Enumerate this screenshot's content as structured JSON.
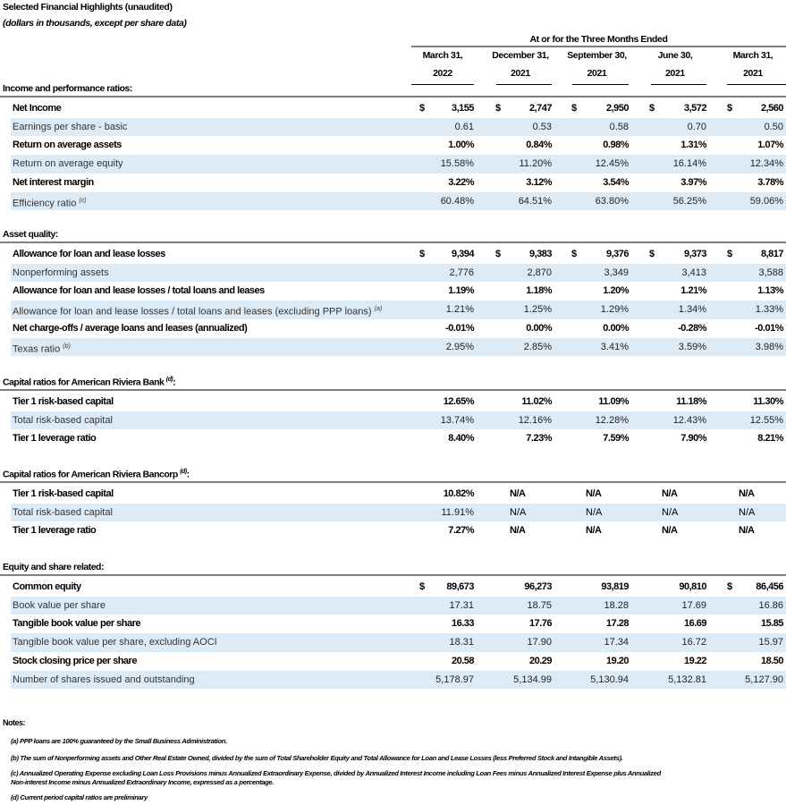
{
  "header": {
    "title": "Selected Financial Highlights (unaudited)",
    "subtitle": "(dollars in thousands, except per share data)",
    "period_label": "At or for the Three Months Ended",
    "columns": [
      {
        "line1": "March 31,",
        "line2": "2022"
      },
      {
        "line1": "December 31,",
        "line2": "2021"
      },
      {
        "line1": "September 30,",
        "line2": "2021"
      },
      {
        "line1": "June 30,",
        "line2": "2021"
      },
      {
        "line1": "March 31,",
        "line2": "2021"
      }
    ]
  },
  "currency_symbol": "$",
  "colors": {
    "row_shade": "#ddebf7",
    "rule": "#7f7f7f"
  },
  "sections": [
    {
      "title": "Income and performance ratios:",
      "title_sup": "",
      "rows": [
        {
          "label": "Net Income",
          "sup": "",
          "values": [
            "3,155",
            "2,747",
            "2,950",
            "3,572",
            "2,560"
          ],
          "dollar": [
            true,
            true,
            true,
            true,
            true
          ]
        },
        {
          "label": "Earnings per share - basic",
          "sup": "",
          "values": [
            "0.61",
            "0.53",
            "0.58",
            "0.70",
            "0.50"
          ],
          "dollar": [
            false,
            false,
            false,
            false,
            false
          ]
        },
        {
          "label": "Return on average assets",
          "sup": "",
          "values": [
            "1.00%",
            "0.84%",
            "0.98%",
            "1.31%",
            "1.07%"
          ],
          "dollar": [
            false,
            false,
            false,
            false,
            false
          ]
        },
        {
          "label": "Return on average equity",
          "sup": "",
          "values": [
            "15.58%",
            "11.20%",
            "12.45%",
            "16.14%",
            "12.34%"
          ],
          "dollar": [
            false,
            false,
            false,
            false,
            false
          ]
        },
        {
          "label": "Net interest margin",
          "sup": "",
          "values": [
            "3.22%",
            "3.12%",
            "3.54%",
            "3.97%",
            "3.78%"
          ],
          "dollar": [
            false,
            false,
            false,
            false,
            false
          ]
        },
        {
          "label": "Efficiency ratio",
          "sup": "(c)",
          "values": [
            "60.48%",
            "64.51%",
            "63.80%",
            "56.25%",
            "59.06%"
          ],
          "dollar": [
            false,
            false,
            false,
            false,
            false
          ]
        }
      ]
    },
    {
      "title": "Asset quality:",
      "title_sup": "",
      "rows": [
        {
          "label": "Allowance for loan and lease losses",
          "sup": "",
          "values": [
            "9,394",
            "9,383",
            "9,376",
            "9,373",
            "8,817"
          ],
          "dollar": [
            true,
            true,
            true,
            true,
            true
          ]
        },
        {
          "label": "Nonperforming assets",
          "sup": "",
          "values": [
            "2,776",
            "2,870",
            "3,349",
            "3,413",
            "3,588"
          ],
          "dollar": [
            false,
            false,
            false,
            false,
            false
          ]
        },
        {
          "label": "Allowance for loan and lease losses / total loans and leases",
          "sup": "",
          "values": [
            "1.19%",
            "1.18%",
            "1.20%",
            "1.21%",
            "1.13%"
          ],
          "dollar": [
            false,
            false,
            false,
            false,
            false
          ]
        },
        {
          "label": "Allowance for loan and lease losses / total loans and leases (excluding PPP loans)",
          "sup": "(a)",
          "values": [
            "1.21%",
            "1.25%",
            "1.29%",
            "1.34%",
            "1.33%"
          ],
          "dollar": [
            false,
            false,
            false,
            false,
            false
          ]
        },
        {
          "label": "Net charge-offs / average loans and leases (annualized)",
          "sup": "",
          "values": [
            "-0.01%",
            "0.00%",
            "0.00%",
            "-0.28%",
            "-0.01%"
          ],
          "dollar": [
            false,
            false,
            false,
            false,
            false
          ]
        },
        {
          "label": "Texas ratio",
          "sup": "(b)",
          "values": [
            "2.95%",
            "2.85%",
            "3.41%",
            "3.59%",
            "3.98%"
          ],
          "dollar": [
            false,
            false,
            false,
            false,
            false
          ]
        }
      ]
    },
    {
      "title": "Capital ratios for American Riviera Bank",
      "title_sup": "(d)",
      "title_suffix": ":",
      "rows": [
        {
          "label": "Tier 1 risk-based capital",
          "sup": "",
          "values": [
            "12.65%",
            "11.02%",
            "11.09%",
            "11.18%",
            "11.30%"
          ],
          "dollar": [
            false,
            false,
            false,
            false,
            false
          ]
        },
        {
          "label": "Total risk-based capital",
          "sup": "",
          "values": [
            "13.74%",
            "12.16%",
            "12.28%",
            "12.43%",
            "12.55%"
          ],
          "dollar": [
            false,
            false,
            false,
            false,
            false
          ]
        },
        {
          "label": "Tier 1 leverage ratio",
          "sup": "",
          "values": [
            "8.40%",
            "7.23%",
            "7.59%",
            "7.90%",
            "8.21%"
          ],
          "dollar": [
            false,
            false,
            false,
            false,
            false
          ]
        }
      ]
    },
    {
      "title": "Capital ratios for American Riviera Bancorp",
      "title_sup": "(d)",
      "title_suffix": ":",
      "rows": [
        {
          "label": "Tier 1 risk-based capital",
          "sup": "",
          "values": [
            "10.82%",
            "N/A",
            "N/A",
            "N/A",
            "N/A"
          ],
          "dollar": [
            false,
            false,
            false,
            false,
            false
          ]
        },
        {
          "label": "Total risk-based capital",
          "sup": "",
          "values": [
            "11.91%",
            "N/A",
            "N/A",
            "N/A",
            "N/A"
          ],
          "dollar": [
            false,
            false,
            false,
            false,
            false
          ]
        },
        {
          "label": "Tier 1 leverage ratio",
          "sup": "",
          "values": [
            "7.27%",
            "N/A",
            "N/A",
            "N/A",
            "N/A"
          ],
          "dollar": [
            false,
            false,
            false,
            false,
            false
          ]
        }
      ]
    },
    {
      "title": "Equity and share related:",
      "title_sup": "",
      "rows": [
        {
          "label": "Common equity",
          "sup": "",
          "values": [
            "89,673",
            "96,273",
            "93,819",
            "90,810",
            "86,456"
          ],
          "dollar": [
            true,
            false,
            false,
            false,
            true
          ]
        },
        {
          "label": "Book value per share",
          "sup": "",
          "values": [
            "17.31",
            "18.75",
            "18.28",
            "17.69",
            "16.86"
          ],
          "dollar": [
            false,
            false,
            false,
            false,
            false
          ]
        },
        {
          "label": "Tangible book value per share",
          "sup": "",
          "values": [
            "16.33",
            "17.76",
            "17.28",
            "16.69",
            "15.85"
          ],
          "dollar": [
            false,
            false,
            false,
            false,
            false
          ]
        },
        {
          "label": "Tangible book value per share, excluding AOCI",
          "sup": "",
          "values": [
            "18.31",
            "17.90",
            "17.34",
            "16.72",
            "15.97"
          ],
          "dollar": [
            false,
            false,
            false,
            false,
            false
          ]
        },
        {
          "label": "Stock closing price per share",
          "sup": "",
          "values": [
            "20.58",
            "20.29",
            "19.20",
            "19.22",
            "18.50"
          ],
          "dollar": [
            false,
            false,
            false,
            false,
            false
          ]
        },
        {
          "label": "Number of shares issued and outstanding",
          "sup": "",
          "values": [
            "5,178.97",
            "5,134.99",
            "5,130.94",
            "5,132.81",
            "5,127.90"
          ],
          "dollar": [
            false,
            false,
            false,
            false,
            false
          ]
        }
      ]
    }
  ],
  "notes": {
    "title": "Notes:",
    "items": [
      "(a) PPP loans are 100% guaranteed by the Small Business Administration.",
      "(b) The sum of Nonperforming assets and Other Real Estate Owned, divided by the sum of Total Shareholder Equity and Total Allowance for Loan and Lease Losses (less Preferred Stock and Intangible Assets).",
      "(c) Annualized Operating Expense excluding Loan Loss Provisions minus Annualized Extraordinary Expense, divided by Annualized Interest Income including Loan Fees minus Annualized Interest Expense plus Annualized",
      "Non-interest Income minus Annualized Extraordinary Income, expressed as a percentage.",
      "(d) Current period capital ratios are preliminary"
    ]
  }
}
